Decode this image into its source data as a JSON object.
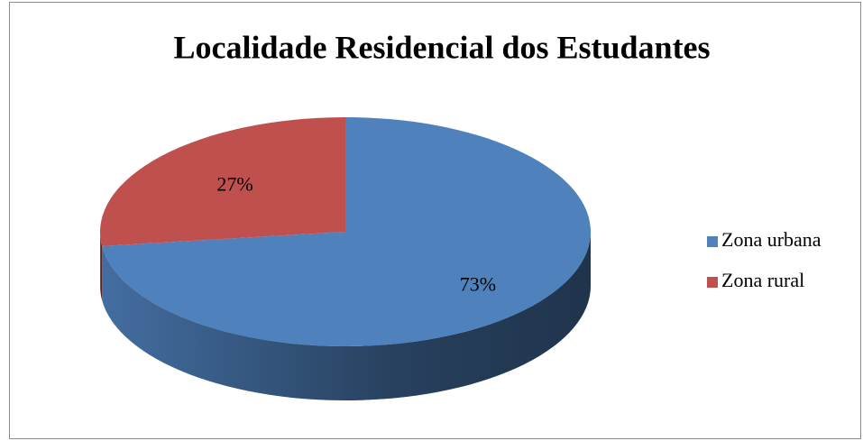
{
  "chart_data": {
    "type": "pie3d",
    "title": "Localidade Residencial dos Estudantes",
    "categories": [
      "Zona urbana",
      "Zona rural"
    ],
    "values": [
      73,
      27
    ],
    "value_labels": [
      "73%",
      "27%"
    ],
    "colors": [
      "#4f81bd",
      "#c0504d"
    ],
    "legend": "right"
  }
}
